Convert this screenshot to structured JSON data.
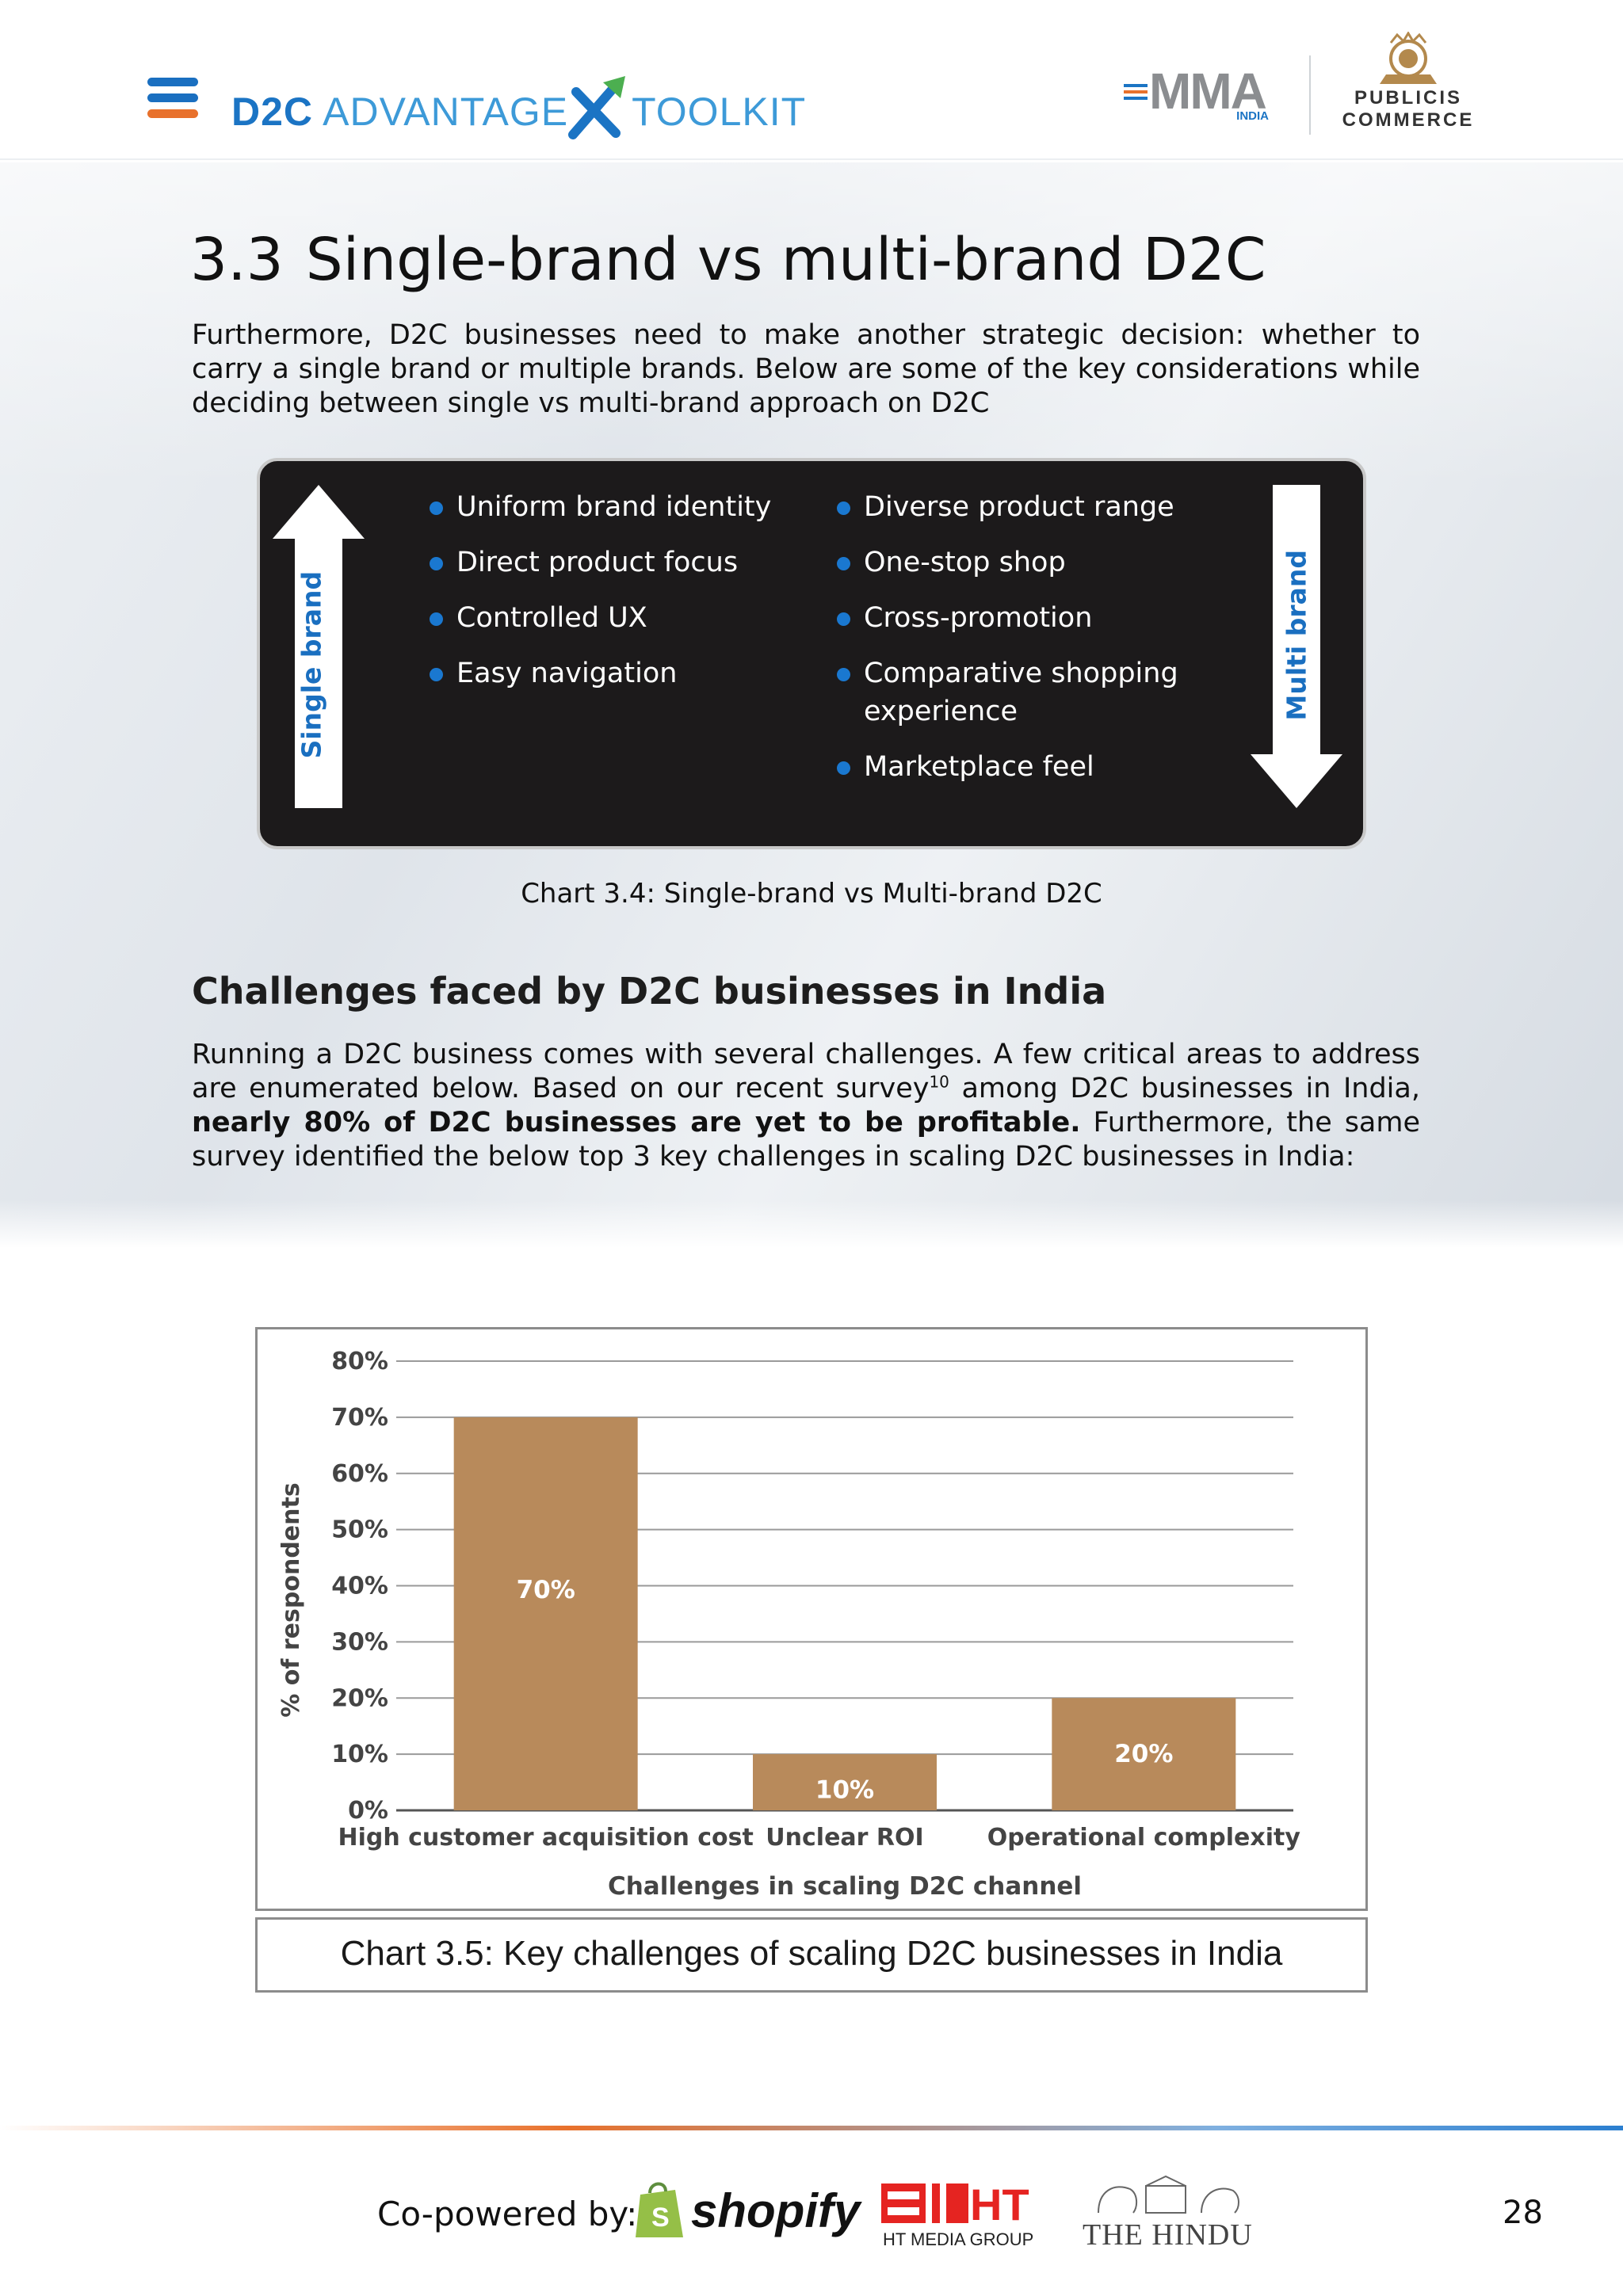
{
  "header": {
    "logo_d2c": "D2C",
    "logo_advantage": "ADVANTAGE",
    "logo_toolkit": "TOOLKIT",
    "mma": "MMA",
    "mma_sub": "INDIA",
    "publicis_1": "PUBLICIS",
    "publicis_2": "COMMERCE"
  },
  "section": {
    "number": "3.3",
    "title": "Single-brand vs multi-brand D2C",
    "intro": "Furthermore, D2C businesses need to make another strategic decision: whether to carry a single brand or multiple brands. Below are some of the key considerations while deciding between single vs multi-brand approach on D2C"
  },
  "comparison": {
    "left_label": "Single brand",
    "right_label": "Multi brand",
    "single_items": [
      "Uniform brand identity",
      "Direct product focus",
      "Controlled UX",
      "Easy navigation"
    ],
    "multi_items": [
      "Diverse product range",
      "One-stop shop",
      "Cross-promotion",
      "Comparative shopping experience",
      "Marketplace feel"
    ],
    "caption": "Chart 3.4: Single-brand vs Multi-brand D2C"
  },
  "challenges": {
    "heading": "Challenges faced by D2C businesses in India",
    "para_1": "Running a D2C business comes with several challenges. A few critical areas to address are enumerated below. Based on our recent survey",
    "sup": "10",
    "para_2": " among D2C businesses in India, ",
    "para_bold": "nearly 80% of D2C businesses are yet to be profitable.",
    "para_3": " Furthermore, the same survey identified the below top 3 key challenges in scaling D2C businesses in India:"
  },
  "chart_data": {
    "type": "bar",
    "categories": [
      "High customer acquisition cost",
      "Unclear ROI",
      "Operational complexity"
    ],
    "values": [
      70,
      10,
      20
    ],
    "data_labels": [
      "70%",
      "10%",
      "20%"
    ],
    "ylabel": "% of respondents",
    "xlabel": "Challenges in scaling D2C channel",
    "ylim": [
      0,
      80
    ],
    "yticks": [
      "0%",
      "10%",
      "20%",
      "30%",
      "40%",
      "50%",
      "60%",
      "70%",
      "80%"
    ],
    "grid": true,
    "bar_color": "#b88a5b",
    "caption": "Chart 3.5: Key challenges of scaling D2C businesses in India"
  },
  "footer": {
    "copowered": "Co-powered by:",
    "shopify": "shopify",
    "ht_group": "HT MEDIA GROUP",
    "hindu": "THE HINDU",
    "page_number": "28"
  },
  "colors": {
    "brand_blue": "#1a6fc0",
    "brand_orange": "#e8712c",
    "box_dark": "#1c1a1b"
  }
}
